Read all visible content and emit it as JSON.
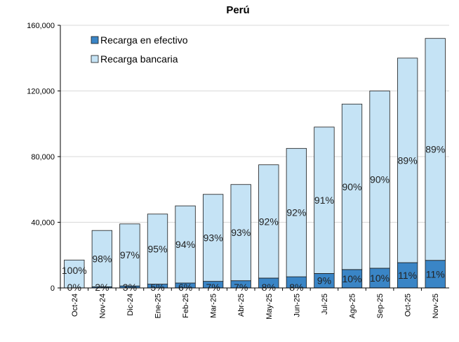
{
  "chart_data": {
    "type": "bar",
    "stacked": true,
    "title": "Perú",
    "xlabel": "",
    "ylabel": "",
    "ylim": [
      0,
      160000
    ],
    "yticks": [
      0,
      40000,
      80000,
      120000,
      160000
    ],
    "ytick_labels": [
      "0",
      "40,000",
      "80,000",
      "120,000",
      "160,000"
    ],
    "grid": true,
    "legend_position": "top-left",
    "categories": [
      "Oct-24",
      "Nov-24",
      "Dic-24",
      "Ene-25",
      "Feb-25",
      "Mar-25",
      "Abr-25",
      "May-25",
      "Jun-25",
      "Jul-25",
      "Ago-25",
      "Sep-25",
      "Oct-25",
      "Nov-25"
    ],
    "series": [
      {
        "name": "Recarga en efectivo",
        "color": "#3a85c6",
        "values": [
          0,
          700,
          1200,
          2300,
          3000,
          4000,
          4400,
          6000,
          6800,
          8800,
          11200,
          12000,
          15400,
          16800
        ],
        "labels": [
          "0%",
          "2%",
          "3%",
          "5%",
          "6%",
          "7%",
          "7%",
          "8%",
          "8%",
          "9%",
          "10%",
          "10%",
          "11%",
          "11%"
        ]
      },
      {
        "name": "Recarga bancaria",
        "color": "#c5e3f5",
        "values": [
          17000,
          34300,
          37800,
          42700,
          47000,
          53000,
          58600,
          69000,
          78200,
          89200,
          100800,
          108000,
          124600,
          135200
        ],
        "labels": [
          "100%",
          "98%",
          "97%",
          "95%",
          "94%",
          "93%",
          "93%",
          "92%",
          "92%",
          "91%",
          "90%",
          "90%",
          "89%",
          "89%"
        ]
      }
    ]
  }
}
